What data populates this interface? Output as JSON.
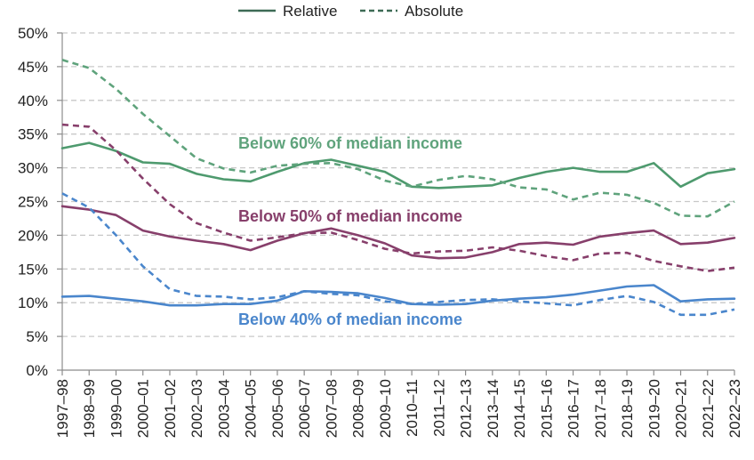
{
  "chart_data": {
    "type": "line",
    "title": "",
    "xlabel": "",
    "ylabel": "",
    "ylim": [
      0,
      50
    ],
    "y_ticks": [
      "0%",
      "5%",
      "10%",
      "15%",
      "20%",
      "25%",
      "30%",
      "35%",
      "40%",
      "45%",
      "50%"
    ],
    "y_tick_values": [
      0,
      5,
      10,
      15,
      20,
      25,
      30,
      35,
      40,
      45,
      50
    ],
    "grid": "horizontal dashed",
    "legend": {
      "placement": "top",
      "entries": [
        {
          "label": "Relative",
          "style": "solid"
        },
        {
          "label": "Absolute",
          "style": "dashed"
        }
      ]
    },
    "categories": [
      "1997–98",
      "1998–99",
      "1999–00",
      "2000–01",
      "2001–02",
      "2002–03",
      "2003–04",
      "2004–05",
      "2005–06",
      "2006–07",
      "2007–08",
      "2008–09",
      "2009–10",
      "2010–11",
      "2011–12",
      "2012–13",
      "2013–14",
      "2014–15",
      "2015–16",
      "2016–17",
      "2017–18",
      "2018–19",
      "2019–20",
      "2020–21",
      "2021–22",
      "2022–23"
    ],
    "annotations": [
      {
        "text": "Below 60% of median income",
        "color": "#5fa37c"
      },
      {
        "text": "Below 50% of median income",
        "color": "#873f6b"
      },
      {
        "text": "Below 40% of median income",
        "color": "#4a86cc"
      }
    ],
    "series": [
      {
        "group": "60",
        "style": "solid",
        "color": "#4e9a6e",
        "values": [
          32.9,
          33.7,
          32.5,
          30.8,
          30.6,
          29.1,
          28.3,
          28.0,
          29.4,
          30.7,
          31.2,
          30.3,
          29.4,
          27.2,
          27.0,
          27.2,
          27.4,
          28.5,
          29.4,
          30.0,
          29.4,
          29.4,
          30.7,
          27.2,
          29.2,
          29.8
        ]
      },
      {
        "group": "60",
        "style": "dashed",
        "color": "#5fa37c",
        "values": [
          46.0,
          44.8,
          41.7,
          38.0,
          34.7,
          31.4,
          29.9,
          29.3,
          30.3,
          30.6,
          30.7,
          29.8,
          28.1,
          27.2,
          28.2,
          28.8,
          28.3,
          27.1,
          26.8,
          25.3,
          26.3,
          26.0,
          24.8,
          22.9,
          22.8,
          25.0
        ]
      },
      {
        "group": "50",
        "style": "solid",
        "color": "#873f6b",
        "values": [
          24.3,
          23.8,
          23.0,
          20.7,
          19.8,
          19.2,
          18.7,
          17.8,
          19.2,
          20.3,
          21.0,
          20.0,
          18.8,
          17.0,
          16.6,
          16.7,
          17.5,
          18.7,
          18.9,
          18.6,
          19.8,
          20.3,
          20.7,
          18.7,
          18.9,
          19.6
        ]
      },
      {
        "group": "50",
        "style": "dashed",
        "color": "#873f6b",
        "values": [
          36.4,
          36.1,
          32.6,
          28.4,
          24.6,
          21.8,
          20.4,
          19.2,
          19.7,
          20.3,
          20.4,
          19.3,
          18.0,
          17.3,
          17.6,
          17.7,
          18.2,
          17.7,
          16.9,
          16.3,
          17.3,
          17.4,
          16.2,
          15.4,
          14.7,
          15.2
        ]
      },
      {
        "group": "40",
        "style": "solid",
        "color": "#4a86cc",
        "values": [
          10.9,
          11.0,
          10.6,
          10.2,
          9.6,
          9.6,
          9.8,
          9.8,
          10.3,
          11.7,
          11.6,
          11.4,
          10.7,
          9.8,
          9.7,
          9.8,
          10.3,
          10.6,
          10.8,
          11.2,
          11.8,
          12.4,
          12.6,
          10.2,
          10.5,
          10.6
        ]
      },
      {
        "group": "40",
        "style": "dashed",
        "color": "#4a86cc",
        "values": [
          26.2,
          24.1,
          20.0,
          15.4,
          12.0,
          11.0,
          10.9,
          10.5,
          10.8,
          11.7,
          11.3,
          11.1,
          10.2,
          9.8,
          10.1,
          10.4,
          10.5,
          10.2,
          9.9,
          9.6,
          10.4,
          11.0,
          10.1,
          8.2,
          8.2,
          9.0
        ]
      }
    ]
  },
  "colors": {
    "green": "#5fa37c",
    "green_dark": "#4e9a6e",
    "purple": "#873f6b",
    "blue": "#4a86cc",
    "legend_line": "#3d6b55",
    "grid": "#c8c8c8"
  }
}
